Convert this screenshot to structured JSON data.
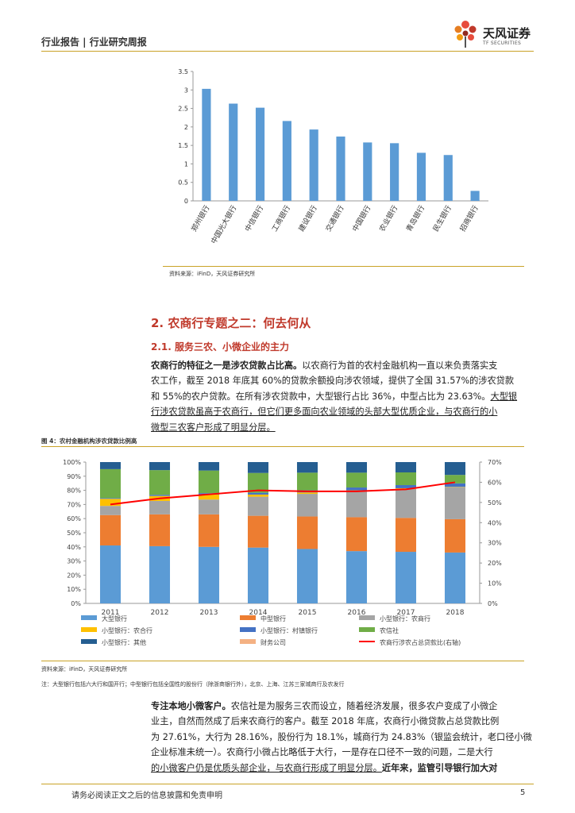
{
  "header": {
    "text": "行业报告 | 行业研究周报",
    "logo_cn": "天风证券",
    "logo_en": "TF SECURITIES"
  },
  "section": {
    "h2": "2. 农商行专题之二：何去何从",
    "h3": "2.1. 服务三农、小微企业的主力"
  },
  "para1": {
    "l1_bold": "农商行的特征之一是涉农贷款占比高。",
    "l1_rest": "以农商行为首的农村金融机构一直以来负责落实支",
    "l2": "农工作，截至 2018 年底其 60%的贷款余额投向涉农领域，提供了全国 31.57%的涉农贷款",
    "l3_pre": "和 55%的农户贷款。在所有涉农贷款中，大型银行占比 36%，中型占比为 23.63%。",
    "l3_u": "大型银",
    "l4": "行涉农贷款虽高于农商行，但它们更多面向农业领域的头部大型优质企业，与农商行的小",
    "l5": "微型三农客户形成了明显分层。"
  },
  "para2": {
    "l1_bold": "专注本地小微客户。",
    "l1_rest": "农信社是为服务三农而设立，随着经济发展，很多农户变成了小微企",
    "l2": "业主，自然而然成了后来农商行的客户。截至 2018 年底，农商行小微贷款占总贷款比例",
    "l3": "为 27.61%，大行为 28.16%，股份行为 18.1%，城商行为 24.83%（银监会统计，老口径小微",
    "l4": "企业标准未统一）。农商行小微占比略低于大行，一是存在口径不一致的问题，二是大行",
    "l5_u": "的小微客户仍是优质头部企业，与农商行形成了明显分层。",
    "l5_bold": "近年来，监管引导银行加大对"
  },
  "chart1_source": "资料来源：iFinD，天风证券研究所",
  "figure4": {
    "title": "图 4：农村金融机构涉农贷款比例高",
    "source": "资料来源：iFinD，天风证券研究所",
    "note": "注：大型银行包括六大行和国开行；中型银行包括全国性的股份行（除浙商银行外），北京、上海、江苏三家城商行及农发行"
  },
  "footer": {
    "disclaimer": "请务必阅读正文之后的信息披露和免责申明",
    "page": "5"
  },
  "chart_data": [
    {
      "type": "bar",
      "title": "",
      "categories": [
        "郑州银行",
        "中国光大银行",
        "中信银行",
        "工商银行",
        "建设银行",
        "交通银行",
        "中国银行",
        "农业银行",
        "青岛银行",
        "民生银行",
        "招商银行"
      ],
      "values": [
        3.03,
        2.63,
        2.52,
        2.16,
        1.93,
        1.74,
        1.58,
        1.56,
        1.3,
        1.24,
        0.27
      ],
      "ylim": [
        0,
        3.5
      ],
      "yticks": [
        "0",
        "0.5",
        "1",
        "1.5",
        "2",
        "2.5",
        "3",
        "3.5"
      ],
      "color": "#5b9bd5",
      "xlabel": "",
      "ylabel": ""
    },
    {
      "type": "bar",
      "stacked": true,
      "categories": [
        "2011",
        "2012",
        "2013",
        "2014",
        "2015",
        "2016",
        "2017",
        "2018"
      ],
      "ylim": [
        0,
        100
      ],
      "yticks_left": [
        "0%",
        "10%",
        "20%",
        "30%",
        "40%",
        "50%",
        "60%",
        "70%",
        "80%",
        "90%",
        "100%"
      ],
      "y2lim": [
        0,
        70
      ],
      "yticks_right": [
        "0%",
        "10%",
        "20%",
        "30%",
        "40%",
        "50%",
        "60%",
        "70%"
      ],
      "series": [
        {
          "name": "大型银行",
          "color": "#5b9bd5",
          "values": [
            41,
            40.5,
            40,
            39.5,
            38.5,
            37,
            36.5,
            36
          ]
        },
        {
          "name": "中型银行",
          "color": "#ed7d31",
          "values": [
            21.5,
            22.5,
            23,
            22.5,
            23,
            24,
            24,
            23.6
          ]
        },
        {
          "name": "小型银行：农商行",
          "color": "#a5a5a5",
          "values": [
            6.5,
            9.5,
            10.5,
            13.5,
            16,
            18.5,
            20.5,
            22.5
          ]
        },
        {
          "name": "小型银行：农合行",
          "color": "#ffc000",
          "values": [
            5,
            3.5,
            3.5,
            1.5,
            1,
            0.5,
            0.5,
            0.3
          ]
        },
        {
          "name": "小型银行：村镇银行",
          "color": "#4472c4",
          "values": [
            0.5,
            0.8,
            1,
            1.3,
            1.5,
            2,
            2.2,
            2.5
          ]
        },
        {
          "name": "农信社",
          "color": "#70ad47",
          "values": [
            20.5,
            17.5,
            16,
            14,
            12.5,
            10.5,
            9,
            6
          ]
        },
        {
          "name": "小型银行：其他",
          "color": "#255e91",
          "values": [
            5,
            5.7,
            6,
            7.7,
            7.5,
            7.5,
            7.3,
            9.1
          ]
        },
        {
          "name": "财务公司",
          "color": "#f4b183",
          "values": [
            0,
            0,
            0,
            0,
            0,
            0,
            0,
            0
          ]
        }
      ],
      "line": {
        "name": "农商行涉农占总贷款比(右轴)",
        "color": "#ff0000",
        "values": [
          49,
          52,
          54,
          56,
          55.5,
          55.5,
          56.5,
          60
        ]
      }
    }
  ]
}
